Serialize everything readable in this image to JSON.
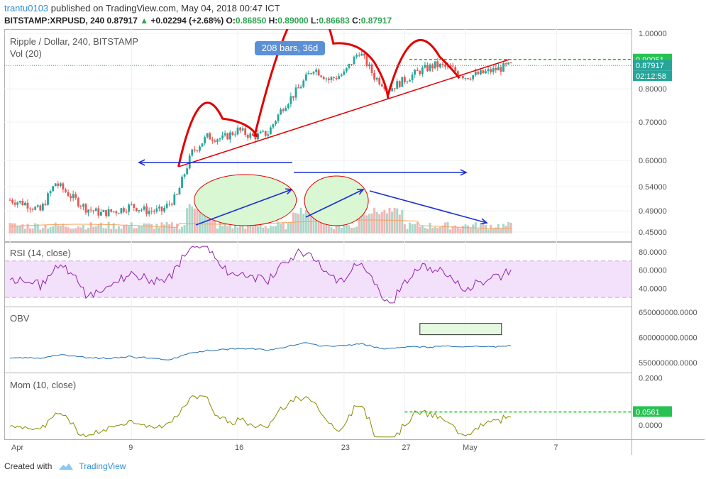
{
  "header": {
    "user": "trantu0103",
    "published_text": "published on TradingView.com, May 04, 2018 00:47 ICT",
    "symbol": "BITSTAMP:XRPUSD, 240",
    "last": "0.87917",
    "arrow": "▲",
    "change": "+0.02294 (+2.68%)",
    "o_label": "O:",
    "o_value": "0.86850",
    "h_label": "H:",
    "h_value": "0.89000",
    "l_label": "L:",
    "l_value": "0.86683",
    "c_label": "C:",
    "c_value": "0.87917"
  },
  "panes": {
    "main_title": "Ripple / Dollar, 240, BITSTAMP",
    "vol_title": "Vol (20)",
    "rsi_title": "RSI (14, close)",
    "obv_title": "OBV",
    "mom_title": "Mom (10, close)"
  },
  "annotation": {
    "bars_label": "208 bars, 36d"
  },
  "badges": {
    "resistance": "0.90051",
    "last_price": "0.87917",
    "countdown": "02:12:58",
    "mom_level": "0.0561"
  },
  "axes": {
    "price_ticks": [
      "1.00000",
      "0.80000",
      "0.70000",
      "0.60000",
      "0.54000",
      "0.49000",
      "0.45000"
    ],
    "rsi_ticks": [
      "80.0000",
      "60.0000",
      "40.0000"
    ],
    "obv_ticks": [
      "650000000.0000",
      "600000000.0000",
      "550000000.0000"
    ],
    "mom_ticks": [
      "0.2000",
      "0.0000"
    ],
    "x_ticks": [
      "Apr",
      "9",
      "16",
      "23",
      "27",
      "May",
      "7"
    ]
  },
  "colors": {
    "up": "#26a69a",
    "down": "#ef5350",
    "pattern": "#e00000",
    "arrows": "#1a2fd6",
    "resistance": "#00cc00",
    "rsi": "#8e24aa",
    "rsi_band": "#f3e0fb",
    "obv": "#1e6fb5",
    "mom": "#8a8a00",
    "ellipse_fill": "#d8f7d2",
    "badge_green": "#27c253",
    "badge_teal": "#26a69a"
  },
  "chart_data": [
    {
      "type": "candlestick",
      "title": "Ripple / Dollar, 240, BITSTAMP",
      "x_range": [
        "2018-04-01",
        "2018-05-10"
      ],
      "y_scale": "log",
      "ylim": [
        0.44,
        1.0
      ],
      "points_close": [
        [
          "2018-04-01",
          0.512
        ],
        [
          "2018-04-02",
          0.505
        ],
        [
          "2018-04-03",
          0.49
        ],
        [
          "2018-04-04",
          0.548
        ],
        [
          "2018-04-05",
          0.52
        ],
        [
          "2018-04-06",
          0.495
        ],
        [
          "2018-04-07",
          0.485
        ],
        [
          "2018-04-08",
          0.49
        ],
        [
          "2018-04-09",
          0.5
        ],
        [
          "2018-04-10",
          0.49
        ],
        [
          "2018-04-11",
          0.49
        ],
        [
          "2018-04-12",
          0.52
        ],
        [
          "2018-04-13",
          0.62
        ],
        [
          "2018-04-14",
          0.66
        ],
        [
          "2018-04-15",
          0.655
        ],
        [
          "2018-04-16",
          0.678
        ],
        [
          "2018-04-17",
          0.66
        ],
        [
          "2018-04-18",
          0.67
        ],
        [
          "2018-04-19",
          0.745
        ],
        [
          "2018-04-20",
          0.8
        ],
        [
          "2018-04-21",
          0.87
        ],
        [
          "2018-04-22",
          0.83
        ],
        [
          "2018-04-23",
          0.85
        ],
        [
          "2018-04-24",
          0.93
        ],
        [
          "2018-04-25",
          0.84
        ],
        [
          "2018-04-26",
          0.8
        ],
        [
          "2018-04-27",
          0.83
        ],
        [
          "2018-04-28",
          0.86
        ],
        [
          "2018-04-29",
          0.88
        ],
        [
          "2018-04-30",
          0.87
        ],
        [
          "2018-05-01",
          0.84
        ],
        [
          "2018-05-02",
          0.85
        ],
        [
          "2018-05-03",
          0.865
        ],
        [
          "2018-05-04",
          0.879
        ]
      ],
      "head_and_shoulders": [
        "left shoulder",
        "head",
        "right shoulder"
      ],
      "neckline": [
        [
          "2018-04-12",
          0.58
        ],
        [
          "2018-05-04",
          0.9
        ]
      ],
      "resistance": 0.90051,
      "last": 0.87917
    },
    {
      "type": "bar",
      "title": "Vol (20)"
    },
    {
      "type": "line",
      "title": "RSI (14, close)",
      "ylim": [
        20,
        90
      ],
      "band": [
        30,
        70
      ]
    },
    {
      "type": "line",
      "title": "OBV",
      "ylim": [
        530000000,
        660000000
      ]
    },
    {
      "type": "line",
      "title": "Mom (10, close)",
      "ylim": [
        -0.06,
        0.22
      ],
      "reference": 0.0561
    }
  ]
}
